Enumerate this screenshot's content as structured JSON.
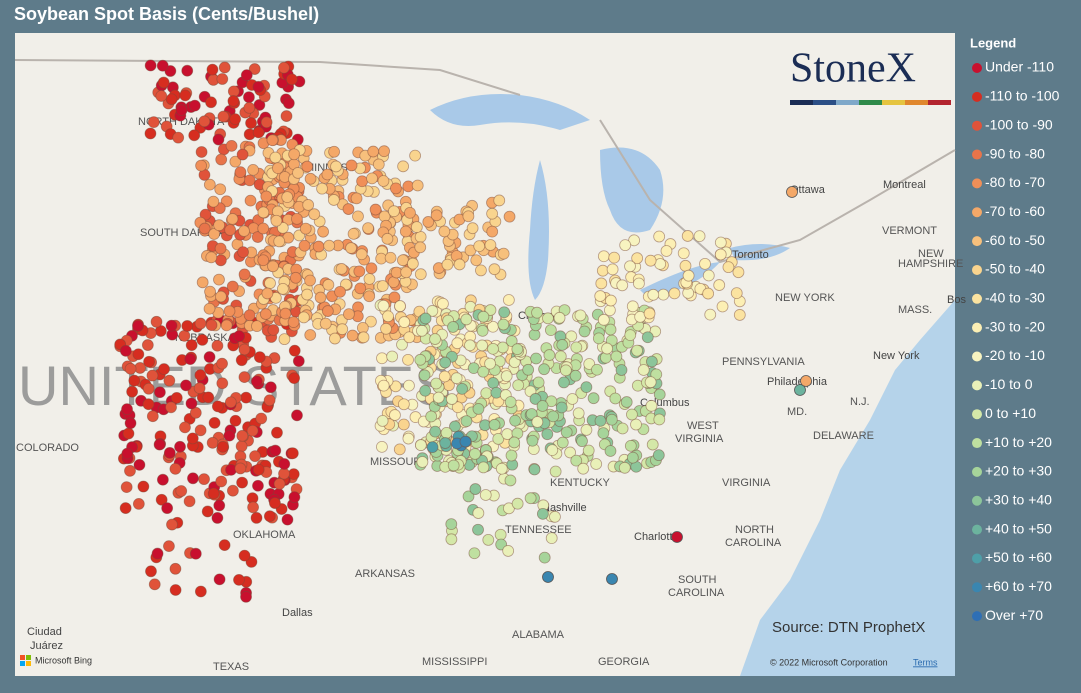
{
  "title": "Soybean Spot Basis (Cents/Bushel)",
  "legend": {
    "title": "Legend",
    "items": [
      {
        "label": "Under -110",
        "color": "#c8102e"
      },
      {
        "label": "-110 to -100",
        "color": "#d62d20"
      },
      {
        "label": "-100 to -90",
        "color": "#e0533a"
      },
      {
        "label": "-90 to -80",
        "color": "#e8744a"
      },
      {
        "label": "-80 to -70",
        "color": "#f08f58"
      },
      {
        "label": "-70 to -60",
        "color": "#f4a868"
      },
      {
        "label": "-60 to -50",
        "color": "#f7c07c"
      },
      {
        "label": "-50 to -40",
        "color": "#f9d48e"
      },
      {
        "label": "-40 to -30",
        "color": "#fbe3a0"
      },
      {
        "label": "-30 to -20",
        "color": "#fcefb4"
      },
      {
        "label": "-20 to -10",
        "color": "#f7f3c0"
      },
      {
        "label": "-10 to 0",
        "color": "#e9f0b8"
      },
      {
        "label": "0 to +10",
        "color": "#d4e8a8"
      },
      {
        "label": "+10 to +20",
        "color": "#bfe0a0"
      },
      {
        "label": "+20 to +30",
        "color": "#a6d49a"
      },
      {
        "label": "+30 to +40",
        "color": "#8cc59a"
      },
      {
        "label": "+40 to +50",
        "color": "#6cb39e"
      },
      {
        "label": "+50 to +60",
        "color": "#4e9fa8"
      },
      {
        "label": "+60 to +70",
        "color": "#3a86b0"
      },
      {
        "label": "Over +70",
        "color": "#2e6fb5"
      }
    ]
  },
  "logo": "StoneX",
  "source": "Source: DTN ProphetX",
  "map_labels": [
    "NORTH DAKOTA",
    "MINNESOTA",
    "SOUTH DAKOTA",
    "NEBRASKA",
    "COLORADO",
    "MISSOURI",
    "KENTUCKY",
    "TENNESSEE",
    "ARKANSAS",
    "OKLAHOMA",
    "TEXAS",
    "ALABAMA",
    "MISSISSIPPI",
    "GEORGIA",
    "SOUTH",
    "CAROLINA",
    "NORTH",
    "CAROLINA",
    "VIRGINIA",
    "WEST",
    "VIRGINIA",
    "PENNSYLVANIA",
    "NEW YORK",
    "VERMONT",
    "NEW",
    "HAMPSHIRE",
    "MASS.",
    "DELAWARE",
    "MD.",
    "N.J.",
    "Ottawa",
    "Montreal",
    "Toronto",
    "Chicago",
    "Columbus",
    "Nashville",
    "Charlotte",
    "Dallas",
    "Philadelphia",
    "New York",
    "Bos",
    "Ciudad",
    "Juárez",
    "UNITED STATES"
  ],
  "attribution": {
    "bing": "Microsoft Bing",
    "copyright": "© 2022 Microsoft Corporation",
    "terms": "Terms"
  }
}
